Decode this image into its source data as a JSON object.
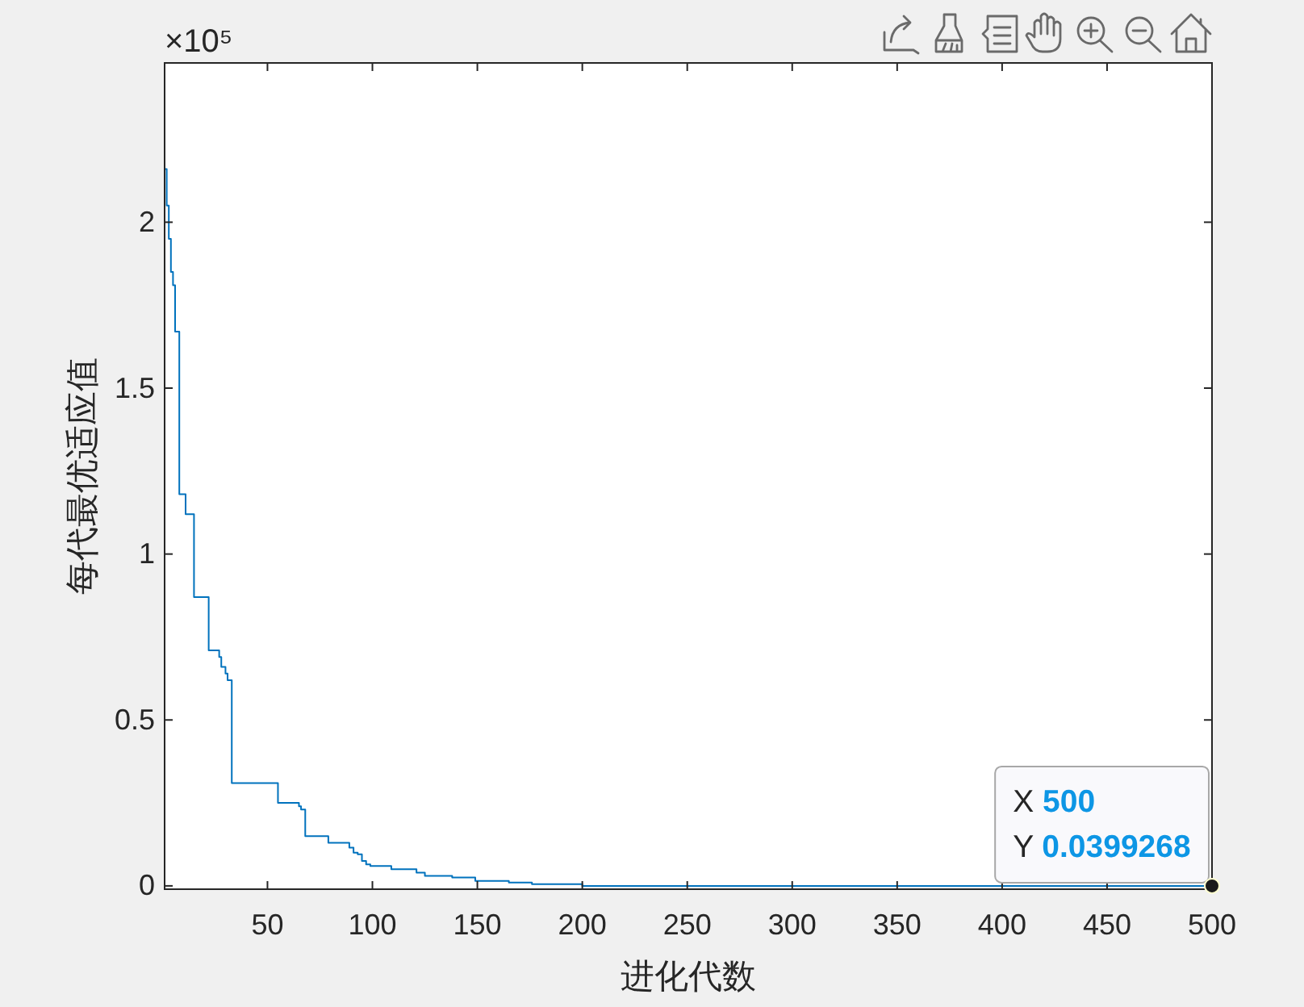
{
  "chart_data": {
    "type": "step",
    "xlabel": "进化代数",
    "ylabel": "每代最优适应值",
    "x": [
      1,
      2,
      3,
      4,
      5,
      6,
      8,
      11,
      15,
      22,
      27,
      28,
      30,
      31,
      33,
      55,
      65,
      66,
      68,
      79,
      89,
      91,
      93,
      95,
      97,
      99,
      109,
      121,
      125,
      138,
      149,
      165,
      176,
      200,
      500
    ],
    "series": [
      {
        "color": "#0072bd",
        "values": [
          2.16,
          2.05,
          1.95,
          1.85,
          1.81,
          1.67,
          1.18,
          1.12,
          0.87,
          0.71,
          0.69,
          0.66,
          0.64,
          0.62,
          0.31,
          0.25,
          0.24,
          0.23,
          0.15,
          0.13,
          0.115,
          0.1,
          0.095,
          0.075,
          0.065,
          0.06,
          0.05,
          0.04,
          0.03,
          0.025,
          0.015,
          0.01,
          0.005,
          0,
          0
        ]
      }
    ],
    "xlim": [
      1,
      500
    ],
    "xticks": [
      50,
      100,
      150,
      200,
      250,
      300,
      350,
      400,
      450,
      500
    ],
    "ylim": [
      -0.01,
      2.48
    ],
    "yticks": [
      0,
      0.5,
      1,
      1.5,
      2
    ],
    "annotations": [
      "×10⁵",
      {
        "text": "X 500\nY 0.0399268",
        "x": 500,
        "y": 0
      }
    ]
  }
}
